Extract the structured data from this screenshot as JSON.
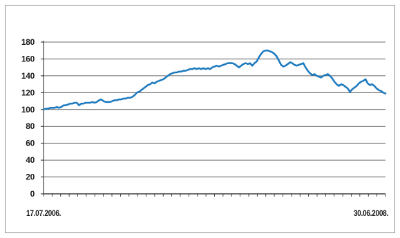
{
  "chart_data": {
    "type": "line",
    "title": "",
    "xlabel": "",
    "ylabel": "",
    "x_start_label": "17.07.2006.",
    "x_end_label": "30.06.2008.",
    "ylim": [
      0,
      180
    ],
    "yticks": [
      0,
      20,
      40,
      60,
      80,
      100,
      120,
      140,
      160,
      180
    ],
    "x_minor_ticks": 40,
    "grid": true,
    "line_color": "#1f7bbf",
    "series": [
      {
        "values": [
          100,
          101,
          101,
          102,
          102,
          102,
          103,
          102,
          103,
          105,
          105,
          106,
          107,
          107,
          108,
          108,
          105,
          107,
          107,
          108,
          108,
          108,
          109,
          108,
          109,
          111,
          112,
          110,
          109,
          109,
          109,
          110,
          111,
          111,
          112,
          112,
          113,
          113,
          114,
          114,
          115,
          117,
          120,
          121,
          123,
          125,
          127,
          129,
          130,
          132,
          131,
          133,
          134,
          135,
          136,
          138,
          140,
          142,
          143,
          144,
          144,
          145,
          145,
          146,
          146,
          147,
          148,
          148,
          149,
          148,
          149,
          148,
          149,
          148,
          149,
          148,
          150,
          151,
          152,
          151,
          152,
          153,
          154,
          155,
          155,
          155,
          154,
          152,
          150,
          152,
          154,
          155,
          154,
          155,
          152,
          155,
          157,
          162,
          166,
          169,
          170,
          170,
          169,
          168,
          166,
          163,
          158,
          153,
          151,
          152,
          154,
          156,
          155,
          153,
          152,
          153,
          154,
          155,
          150,
          146,
          143,
          141,
          142,
          140,
          139,
          138,
          140,
          141,
          142,
          140,
          137,
          133,
          130,
          128,
          130,
          129,
          127,
          125,
          121,
          124,
          126,
          128,
          131,
          133,
          134,
          136,
          131,
          129,
          130,
          128,
          125,
          123,
          122,
          120,
          119
        ]
      }
    ]
  }
}
